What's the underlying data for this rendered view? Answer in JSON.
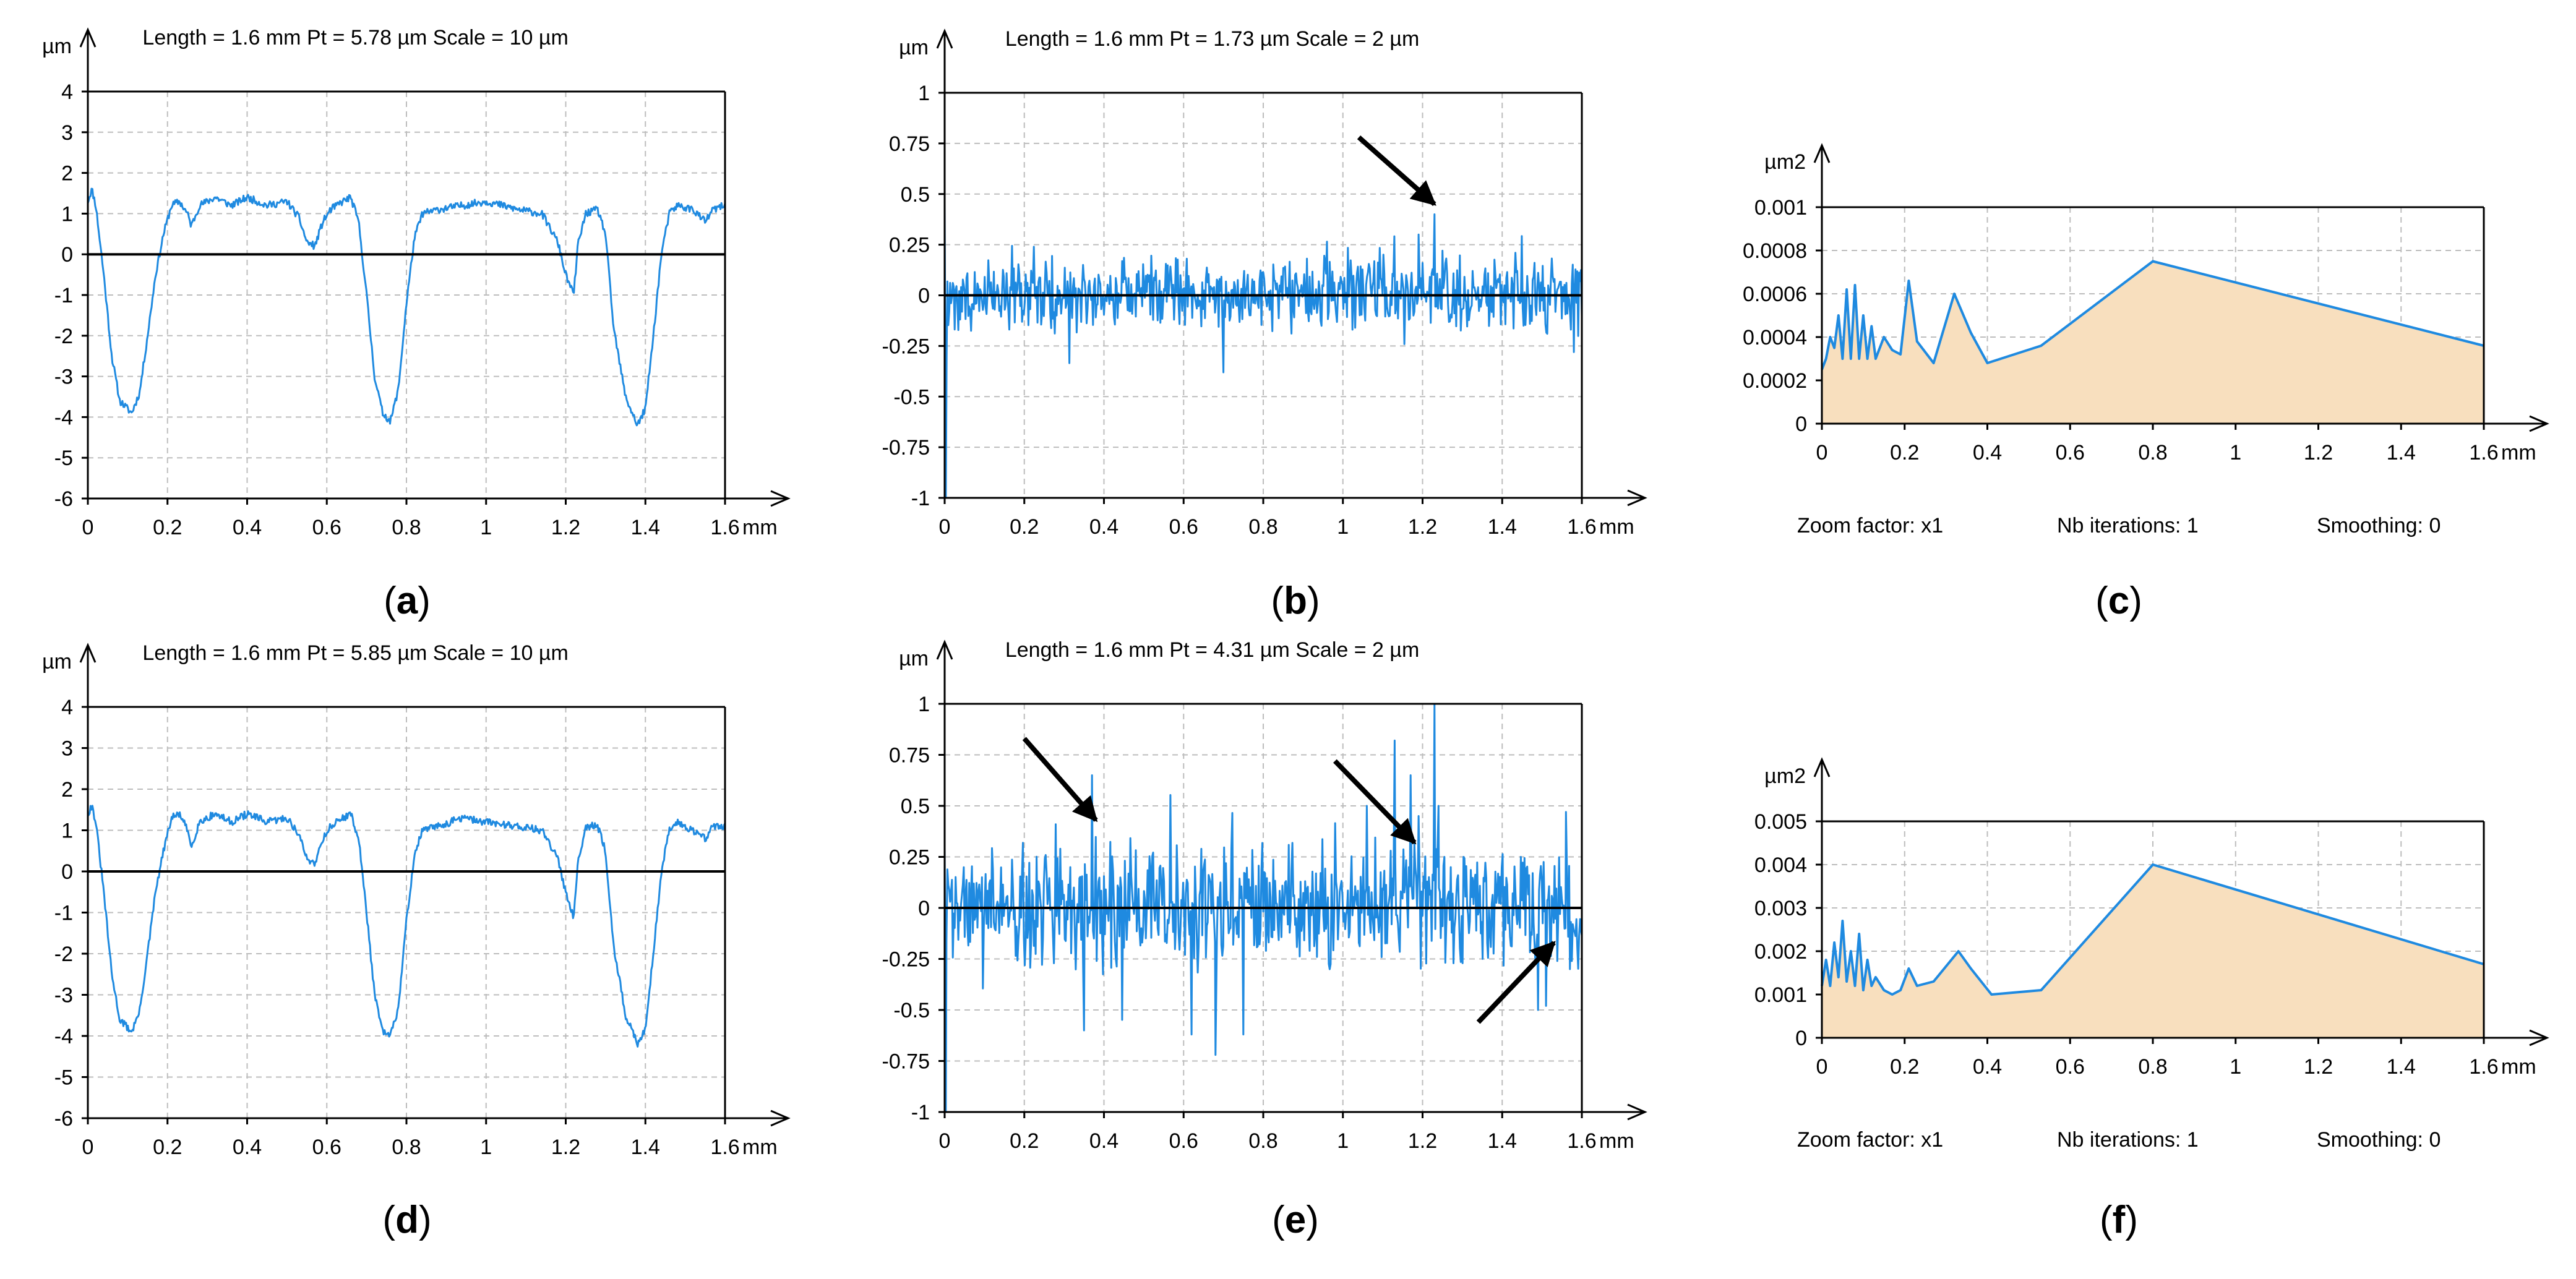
{
  "colors": {
    "signal": "#1f8ae0",
    "axis": "#000000",
    "grid": "#bdbdbd",
    "fill": "#f8dfbe",
    "arrow": "#000000"
  },
  "chart_data": [
    {
      "id": "a",
      "type": "line",
      "caption": "a",
      "header": "Length = 1.6 mm  Pt = 5.78 µm  Scale = 10 µm",
      "yunit": "µm",
      "xunit": "mm",
      "xlim": [
        0,
        1.6
      ],
      "ylim": [
        -6,
        4
      ],
      "xticks": [
        "0",
        "0.2",
        "0.4",
        "0.6",
        "0.8",
        "1",
        "1.2",
        "1.4",
        "1.6"
      ],
      "yticks": [
        "4",
        "3",
        "2",
        "1",
        "0",
        "-1",
        "-2",
        "-3",
        "-4",
        "-5",
        "-6"
      ],
      "profile": [
        [
          0,
          1.3
        ],
        [
          0.01,
          1.6
        ],
        [
          0.02,
          1.2
        ],
        [
          0.04,
          -0.5
        ],
        [
          0.06,
          -2.5
        ],
        [
          0.08,
          -3.6
        ],
        [
          0.11,
          -3.9
        ],
        [
          0.13,
          -3.4
        ],
        [
          0.15,
          -2.0
        ],
        [
          0.17,
          -0.5
        ],
        [
          0.19,
          0.5
        ],
        [
          0.21,
          1.2
        ],
        [
          0.23,
          1.3
        ],
        [
          0.25,
          1.0
        ],
        [
          0.26,
          0.7
        ],
        [
          0.28,
          1.2
        ],
        [
          0.32,
          1.4
        ],
        [
          0.36,
          1.2
        ],
        [
          0.4,
          1.4
        ],
        [
          0.45,
          1.2
        ],
        [
          0.5,
          1.3
        ],
        [
          0.53,
          0.9
        ],
        [
          0.55,
          0.3
        ],
        [
          0.57,
          0.2
        ],
        [
          0.59,
          0.8
        ],
        [
          0.61,
          1.1
        ],
        [
          0.64,
          1.3
        ],
        [
          0.66,
          1.4
        ],
        [
          0.68,
          0.8
        ],
        [
          0.7,
          -1.0
        ],
        [
          0.72,
          -3.0
        ],
        [
          0.74,
          -3.9
        ],
        [
          0.76,
          -4.1
        ],
        [
          0.78,
          -3.3
        ],
        [
          0.8,
          -1.2
        ],
        [
          0.82,
          0.4
        ],
        [
          0.84,
          1.0
        ],
        [
          0.88,
          1.1
        ],
        [
          0.94,
          1.2
        ],
        [
          1.0,
          1.3
        ],
        [
          1.08,
          1.1
        ],
        [
          1.14,
          1.0
        ],
        [
          1.18,
          0.3
        ],
        [
          1.2,
          -0.5
        ],
        [
          1.22,
          -1.0
        ],
        [
          1.23,
          0.2
        ],
        [
          1.25,
          1.0
        ],
        [
          1.28,
          1.1
        ],
        [
          1.3,
          0.5
        ],
        [
          1.32,
          -1.8
        ],
        [
          1.35,
          -3.5
        ],
        [
          1.38,
          -4.2
        ],
        [
          1.4,
          -3.8
        ],
        [
          1.42,
          -2.0
        ],
        [
          1.44,
          0.0
        ],
        [
          1.46,
          1.0
        ],
        [
          1.48,
          1.2
        ],
        [
          1.52,
          1.1
        ],
        [
          1.55,
          0.8
        ],
        [
          1.57,
          1.1
        ],
        [
          1.6,
          1.2
        ]
      ],
      "noise": 0.09,
      "seed": 11,
      "arrows": []
    },
    {
      "id": "b",
      "type": "line",
      "caption": "b",
      "header": "Length = 1.6 mm  Pt = 1.73 µm  Scale = 2 µm",
      "yunit": "µm",
      "xunit": "mm",
      "xlim": [
        0,
        1.6
      ],
      "ylim": [
        -1,
        1
      ],
      "xticks": [
        "0",
        "0.2",
        "0.4",
        "0.6",
        "0.8",
        "1",
        "1.2",
        "1.4",
        "1.6"
      ],
      "yticks": [
        "1",
        "0.75",
        "0.5",
        "0.25",
        "0",
        "-0.25",
        "-0.5",
        "-0.75",
        "-1"
      ],
      "amplitude": 0.18,
      "spikes": [
        [
          0,
          0.45
        ],
        [
          0.003,
          -1.0
        ],
        [
          0.005,
          -0.3
        ],
        [
          0.7,
          -0.38
        ],
        [
          1.19,
          0.3
        ],
        [
          1.23,
          0.4
        ],
        [
          1.25,
          0.22
        ],
        [
          1.58,
          -0.28
        ]
      ],
      "seed": 21,
      "arrows": [
        {
          "x1": 1.04,
          "y1": 0.78,
          "x2": 1.23,
          "y2": 0.45
        }
      ]
    },
    {
      "id": "c",
      "type": "area",
      "caption": "c",
      "yunit": "µm2",
      "xunit": "mm",
      "xlim": [
        0,
        1.6
      ],
      "ylim": [
        0,
        0.001
      ],
      "xticks": [
        "0",
        "0.2",
        "0.4",
        "0.6",
        "0.8",
        "1",
        "1.2",
        "1.4",
        "1.6"
      ],
      "yticks": [
        "0.001",
        "0.0008",
        "0.0006",
        "0.0004",
        "0.0002",
        "0"
      ],
      "points": [
        [
          0,
          0.00025
        ],
        [
          0.01,
          0.0003
        ],
        [
          0.02,
          0.0004
        ],
        [
          0.03,
          0.00035
        ],
        [
          0.04,
          0.0005
        ],
        [
          0.05,
          0.0003
        ],
        [
          0.06,
          0.00062
        ],
        [
          0.07,
          0.0003
        ],
        [
          0.08,
          0.00064
        ],
        [
          0.09,
          0.0003
        ],
        [
          0.1,
          0.0005
        ],
        [
          0.11,
          0.0003
        ],
        [
          0.12,
          0.00045
        ],
        [
          0.13,
          0.0003
        ],
        [
          0.15,
          0.0004
        ],
        [
          0.17,
          0.00034
        ],
        [
          0.19,
          0.00032
        ],
        [
          0.21,
          0.00066
        ],
        [
          0.23,
          0.00038
        ],
        [
          0.27,
          0.00028
        ],
        [
          0.32,
          0.0006
        ],
        [
          0.36,
          0.00042
        ],
        [
          0.4,
          0.00028
        ],
        [
          0.53,
          0.00036
        ],
        [
          0.8,
          0.00075
        ],
        [
          1.6,
          0.00036
        ]
      ],
      "footer": {
        "zoom": "Zoom factor: x1",
        "iterations": "Nb iterations: 1",
        "smoothing": "Smoothing: 0"
      }
    },
    {
      "id": "d",
      "type": "line",
      "caption": "d",
      "header": "Length = 1.6 mm  Pt = 5.85 µm  Scale = 10 µm",
      "yunit": "µm",
      "xunit": "mm",
      "xlim": [
        0,
        1.6
      ],
      "ylim": [
        -6,
        4
      ],
      "xticks": [
        "0",
        "0.2",
        "0.4",
        "0.6",
        "0.8",
        "1",
        "1.2",
        "1.4",
        "1.6"
      ],
      "yticks": [
        "4",
        "3",
        "2",
        "1",
        "0",
        "-1",
        "-2",
        "-3",
        "-4",
        "-5",
        "-6"
      ],
      "profile": [
        [
          0,
          1.4
        ],
        [
          0.01,
          1.6
        ],
        [
          0.02,
          1.2
        ],
        [
          0.04,
          -0.5
        ],
        [
          0.06,
          -2.5
        ],
        [
          0.08,
          -3.6
        ],
        [
          0.11,
          -3.9
        ],
        [
          0.13,
          -3.4
        ],
        [
          0.15,
          -2.0
        ],
        [
          0.17,
          -0.5
        ],
        [
          0.19,
          0.5
        ],
        [
          0.21,
          1.3
        ],
        [
          0.23,
          1.4
        ],
        [
          0.25,
          1.0
        ],
        [
          0.26,
          0.6
        ],
        [
          0.28,
          1.2
        ],
        [
          0.32,
          1.4
        ],
        [
          0.36,
          1.2
        ],
        [
          0.4,
          1.4
        ],
        [
          0.45,
          1.2
        ],
        [
          0.5,
          1.3
        ],
        [
          0.53,
          0.9
        ],
        [
          0.55,
          0.3
        ],
        [
          0.57,
          0.2
        ],
        [
          0.59,
          0.8
        ],
        [
          0.61,
          1.1
        ],
        [
          0.64,
          1.3
        ],
        [
          0.66,
          1.4
        ],
        [
          0.68,
          0.8
        ],
        [
          0.7,
          -1.0
        ],
        [
          0.72,
          -3.0
        ],
        [
          0.74,
          -3.9
        ],
        [
          0.76,
          -4.0
        ],
        [
          0.78,
          -3.3
        ],
        [
          0.8,
          -1.2
        ],
        [
          0.82,
          0.4
        ],
        [
          0.84,
          1.0
        ],
        [
          0.88,
          1.1
        ],
        [
          0.94,
          1.3
        ],
        [
          1.0,
          1.2
        ],
        [
          1.08,
          1.1
        ],
        [
          1.14,
          1.0
        ],
        [
          1.18,
          0.3
        ],
        [
          1.2,
          -0.5
        ],
        [
          1.22,
          -1.1
        ],
        [
          1.23,
          0.2
        ],
        [
          1.25,
          1.1
        ],
        [
          1.28,
          1.1
        ],
        [
          1.3,
          0.5
        ],
        [
          1.32,
          -1.8
        ],
        [
          1.35,
          -3.5
        ],
        [
          1.38,
          -4.2
        ],
        [
          1.4,
          -3.8
        ],
        [
          1.42,
          -2.0
        ],
        [
          1.44,
          0.0
        ],
        [
          1.46,
          1.0
        ],
        [
          1.48,
          1.2
        ],
        [
          1.52,
          1.0
        ],
        [
          1.55,
          0.8
        ],
        [
          1.57,
          1.1
        ],
        [
          1.6,
          1.1
        ]
      ],
      "noise": 0.09,
      "seed": 31,
      "arrows": []
    },
    {
      "id": "e",
      "type": "line",
      "caption": "e",
      "header": "Length = 1.6 mm  Pt = 4.31 µm  Scale = 2 µm",
      "yunit": "µm",
      "xunit": "mm",
      "xlim": [
        0,
        1.6
      ],
      "ylim": [
        -1,
        1
      ],
      "xticks": [
        "0",
        "0.2",
        "0.4",
        "0.6",
        "0.8",
        "1",
        "1.2",
        "1.4",
        "1.6"
      ],
      "yticks": [
        "1",
        "0.75",
        "0.5",
        "0.25",
        "0",
        "-0.25",
        "-0.5",
        "-0.75",
        "-1"
      ],
      "amplitude": 0.3,
      "spikes": [
        [
          0,
          0.3
        ],
        [
          0.003,
          -1.0
        ],
        [
          0.37,
          0.65
        ],
        [
          0.35,
          -0.6
        ],
        [
          0.62,
          -0.62
        ],
        [
          0.68,
          -0.72
        ],
        [
          0.75,
          -0.62
        ],
        [
          1.06,
          0.5
        ],
        [
          1.13,
          0.82
        ],
        [
          1.17,
          0.65
        ],
        [
          1.19,
          0.45
        ],
        [
          1.23,
          1.0
        ],
        [
          1.24,
          0.5
        ],
        [
          1.49,
          -0.5
        ],
        [
          1.51,
          -0.48
        ],
        [
          1.56,
          0.47
        ],
        [
          1.57,
          -0.3
        ]
      ],
      "seed": 41,
      "arrows": [
        {
          "x1": 0.2,
          "y1": 0.83,
          "x2": 0.38,
          "y2": 0.43
        },
        {
          "x1": 0.98,
          "y1": 0.72,
          "x2": 1.18,
          "y2": 0.32
        },
        {
          "x1": 1.34,
          "y1": -0.56,
          "x2": 1.53,
          "y2": -0.17
        }
      ]
    },
    {
      "id": "f",
      "type": "area",
      "caption": "f",
      "yunit": "µm2",
      "xunit": "mm",
      "xlim": [
        0,
        1.6
      ],
      "ylim": [
        0,
        0.005
      ],
      "xticks": [
        "0",
        "0.2",
        "0.4",
        "0.6",
        "0.8",
        "1",
        "1.2",
        "1.4",
        "1.6"
      ],
      "yticks": [
        "0.005",
        "0.004",
        "0.003",
        "0.002",
        "0.001",
        "0"
      ],
      "points": [
        [
          0,
          0.0012
        ],
        [
          0.01,
          0.0018
        ],
        [
          0.02,
          0.0012
        ],
        [
          0.03,
          0.0022
        ],
        [
          0.04,
          0.0014
        ],
        [
          0.05,
          0.0027
        ],
        [
          0.06,
          0.0013
        ],
        [
          0.07,
          0.002
        ],
        [
          0.08,
          0.0012
        ],
        [
          0.09,
          0.0024
        ],
        [
          0.1,
          0.0011
        ],
        [
          0.11,
          0.0018
        ],
        [
          0.12,
          0.0012
        ],
        [
          0.13,
          0.0014
        ],
        [
          0.15,
          0.0011
        ],
        [
          0.17,
          0.001
        ],
        [
          0.19,
          0.0011
        ],
        [
          0.21,
          0.0016
        ],
        [
          0.23,
          0.0012
        ],
        [
          0.27,
          0.0013
        ],
        [
          0.33,
          0.002
        ],
        [
          0.36,
          0.0016
        ],
        [
          0.41,
          0.001
        ],
        [
          0.53,
          0.0011
        ],
        [
          0.8,
          0.004
        ],
        [
          1.6,
          0.0017
        ]
      ],
      "footer": {
        "zoom": "Zoom factor: x1",
        "iterations": "Nb iterations: 1",
        "smoothing": "Smoothing: 0"
      }
    }
  ]
}
